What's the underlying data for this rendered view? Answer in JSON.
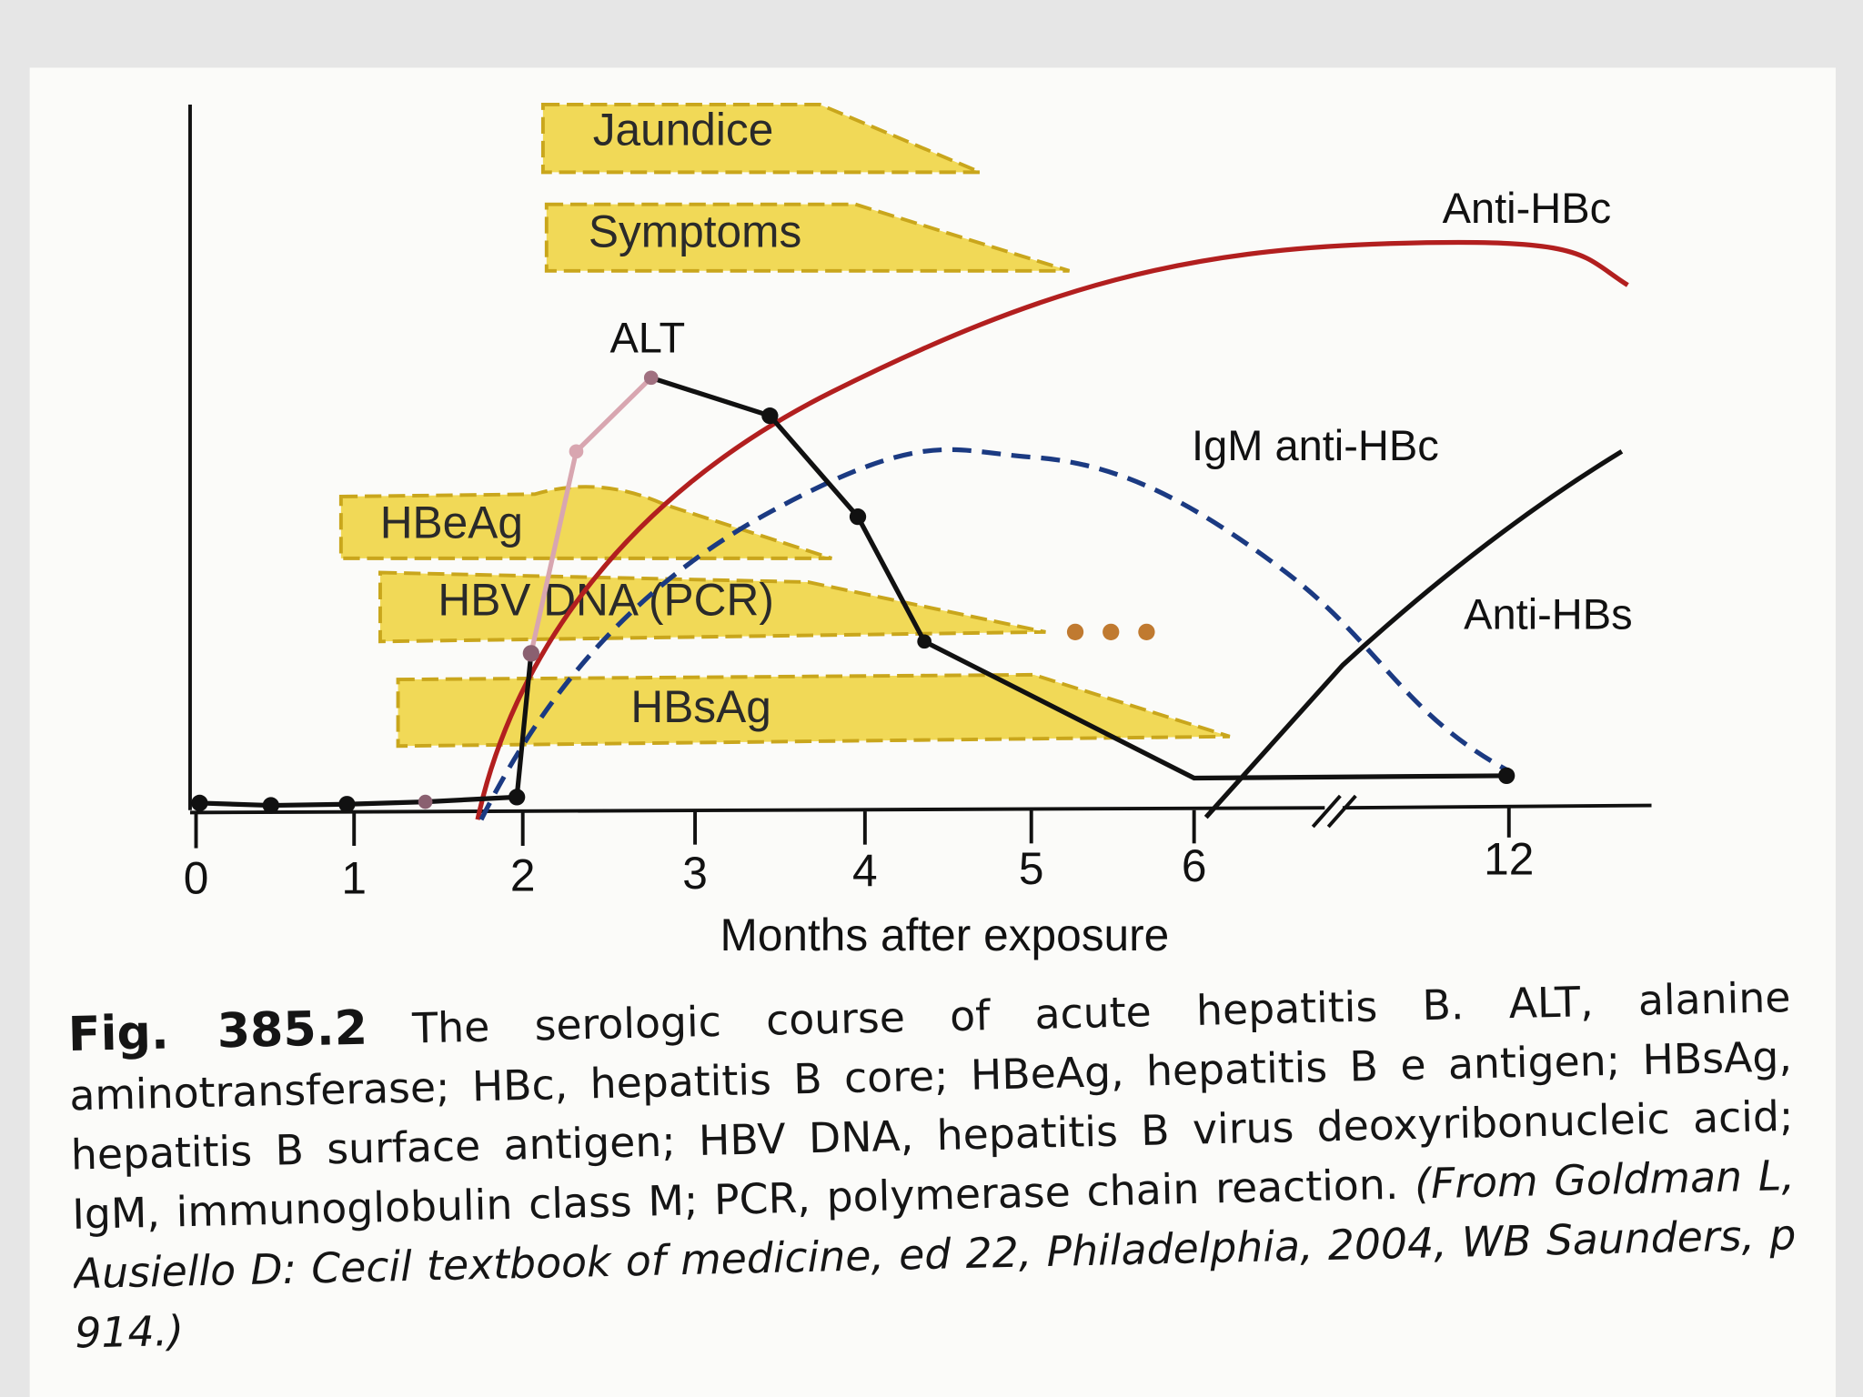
{
  "figure": {
    "bands": [
      "Jaundice",
      "Symptoms",
      "HBeAg",
      "HBV DNA (PCR)",
      "HBsAg"
    ],
    "curve_labels": [
      "Anti-HBc",
      "ALT",
      "IgM anti-HBc",
      "Anti-HBs"
    ],
    "x_axis": {
      "ticks": [
        "0",
        "1",
        "2",
        "3",
        "4",
        "5",
        "6",
        "12"
      ],
      "title": "Months after exposure"
    }
  },
  "caption": {
    "label": "Fig. 385.2",
    "text": "The serologic course of acute hepatitis B. ALT, alanine aminotransferase; HBc, hepatitis B core; HBeAg, hepatitis B e antigen; HBsAg, hepatitis B surface antigen; HBV DNA, hepatitis B virus deoxyribonucleic acid; IgM, immunoglobulin class M; PCR, polymerase chain reaction.",
    "source": "(From Goldman L, Ausiello D: Cecil textbook of medicine, ed 22, Philadelphia, 2004, WB Saunders, p 914.)"
  }
}
